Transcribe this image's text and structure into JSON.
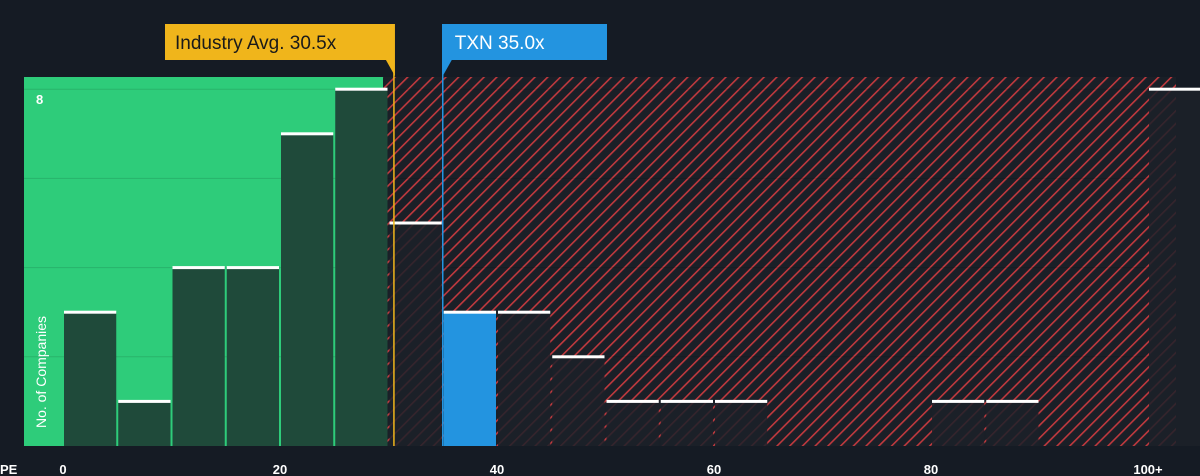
{
  "chart_data": {
    "type": "bar",
    "xlabel": "PE",
    "ylabel": "No. of Companies",
    "x_ticks": [
      "0",
      "20",
      "40",
      "60",
      "80",
      "100+"
    ],
    "y_ticks": [
      "8"
    ],
    "ylim": [
      0,
      8
    ],
    "xlim": [
      0,
      102.5
    ],
    "bin_width": 5,
    "bins": [
      {
        "start": 0,
        "value": 3
      },
      {
        "start": 5,
        "value": 1
      },
      {
        "start": 10,
        "value": 4
      },
      {
        "start": 15,
        "value": 4
      },
      {
        "start": 20,
        "value": 7
      },
      {
        "start": 25,
        "value": 8
      },
      {
        "start": 30,
        "value": 5
      },
      {
        "start": 35,
        "value": 3
      },
      {
        "start": 40,
        "value": 3
      },
      {
        "start": 45,
        "value": 2
      },
      {
        "start": 50,
        "value": 1
      },
      {
        "start": 55,
        "value": 1
      },
      {
        "start": 60,
        "value": 1
      },
      {
        "start": 65,
        "value": 0
      },
      {
        "start": 70,
        "value": 0
      },
      {
        "start": 75,
        "value": 0
      },
      {
        "start": 80,
        "value": 1
      },
      {
        "start": 85,
        "value": 1
      },
      {
        "start": 90,
        "value": 0
      },
      {
        "start": 95,
        "value": 0
      },
      {
        "start": 100,
        "value": 8
      }
    ],
    "highlight_bin_start": 35,
    "fair_zone_end": 29.5,
    "industry_avg": {
      "label": "Industry Avg. 30.5x",
      "value": 30.5
    },
    "company": {
      "label": "TXN 35.0x",
      "value": 35.0
    },
    "colors": {
      "background": "#151b24",
      "fair_zone": "#2ecc7a",
      "bar_fair": "#1f4a3a",
      "bar_over": "#1c2129",
      "highlight": "#2394e0",
      "hatch": "#c0393e",
      "industry_callout": "#f0b51b",
      "company_callout": "#2394e0",
      "bar_cap": "#ffffff"
    }
  }
}
